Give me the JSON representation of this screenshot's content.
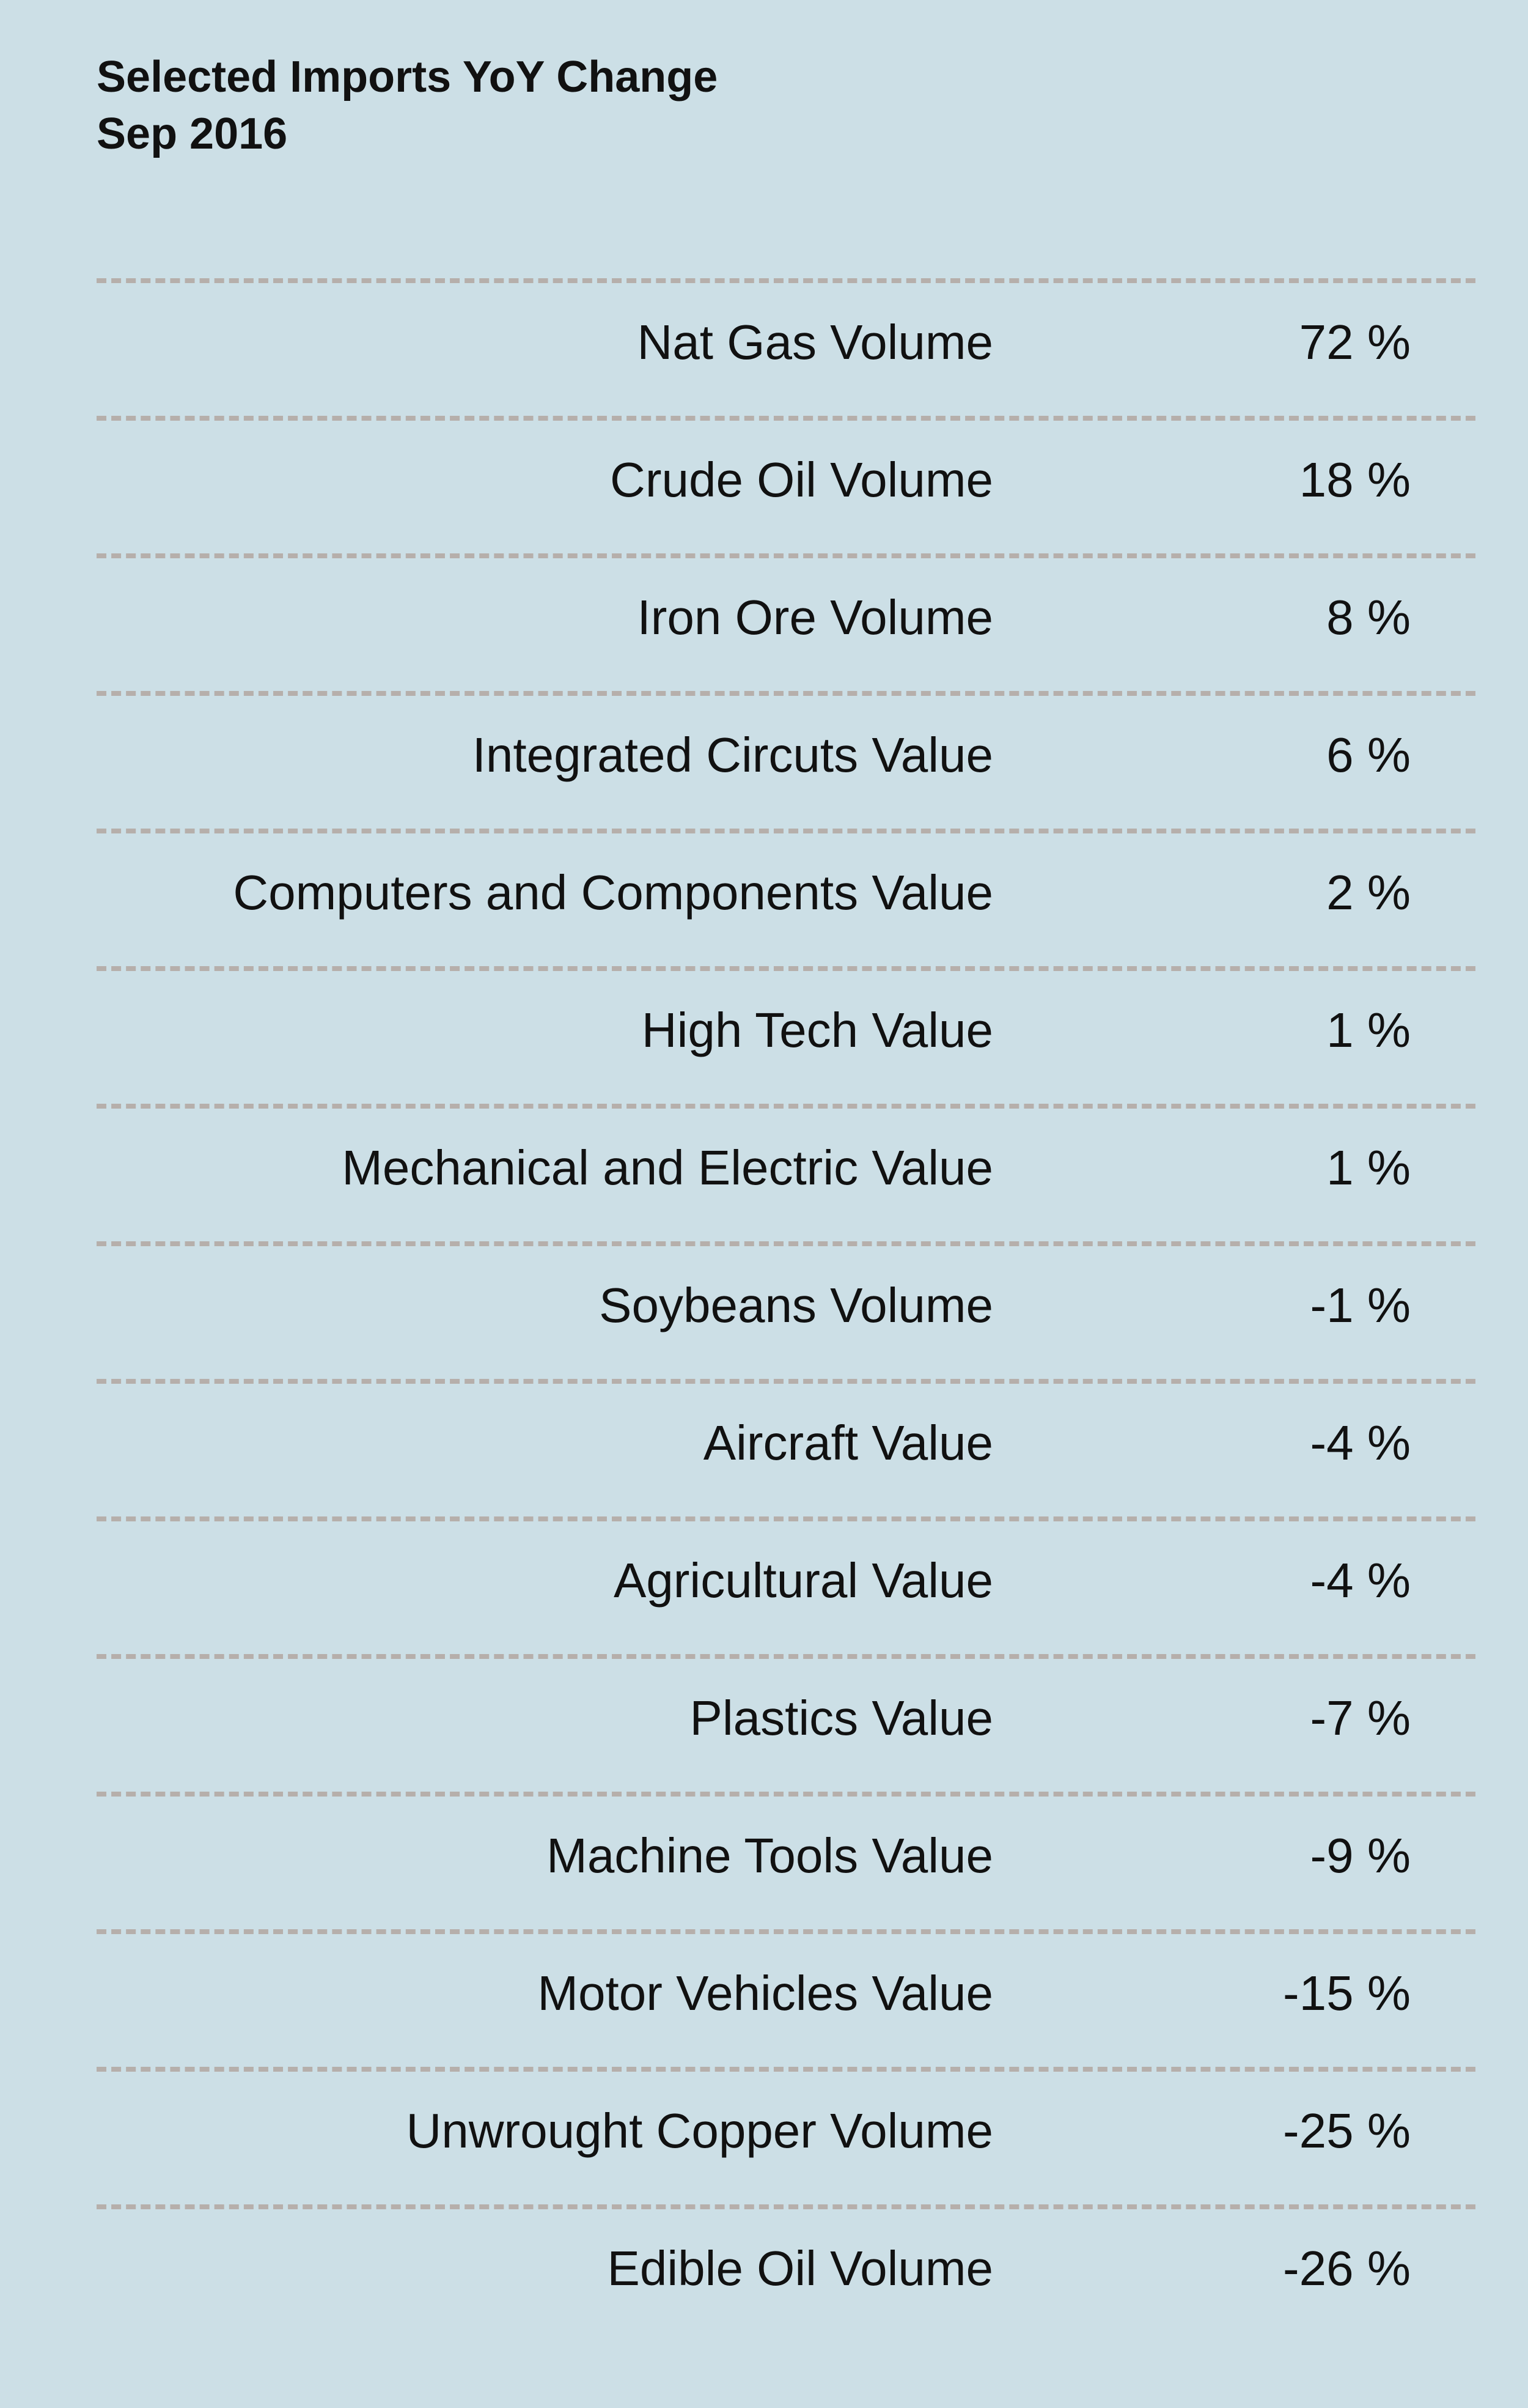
{
  "chart_data": {
    "type": "table",
    "title": "Selected Imports YoY Change",
    "subtitle": "Sep 2016",
    "unit": "%",
    "rows": [
      {
        "category": "Nat Gas Volume",
        "value": 72,
        "display": "72 %"
      },
      {
        "category": "Crude Oil Volume",
        "value": 18,
        "display": "18 %"
      },
      {
        "category": "Iron Ore Volume",
        "value": 8,
        "display": "8 %"
      },
      {
        "category": "Integrated Circuts Value",
        "value": 6,
        "display": "6 %"
      },
      {
        "category": "Computers and Components Value",
        "value": 2,
        "display": "2 %"
      },
      {
        "category": "High Tech Value",
        "value": 1,
        "display": "1 %"
      },
      {
        "category": "Mechanical and Electric Value",
        "value": 1,
        "display": "1 %"
      },
      {
        "category": "Soybeans Volume",
        "value": -1,
        "display": "-1 %"
      },
      {
        "category": "Aircraft Value",
        "value": -4,
        "display": "-4 %"
      },
      {
        "category": "Agricultural Value",
        "value": -4,
        "display": "-4 %"
      },
      {
        "category": "Plastics Value",
        "value": -7,
        "display": "-7 %"
      },
      {
        "category": "Machine Tools Value",
        "value": -9,
        "display": "-9 %"
      },
      {
        "category": "Motor Vehicles Value",
        "value": -15,
        "display": "-15 %"
      },
      {
        "category": "Unwrought Copper Volume",
        "value": -25,
        "display": "-25 %"
      },
      {
        "category": "Edible Oil Volume",
        "value": -26,
        "display": "-26 %"
      }
    ]
  },
  "colors": {
    "background": "#ccdfe6",
    "divider": "#b6afab",
    "text": "#111111"
  }
}
